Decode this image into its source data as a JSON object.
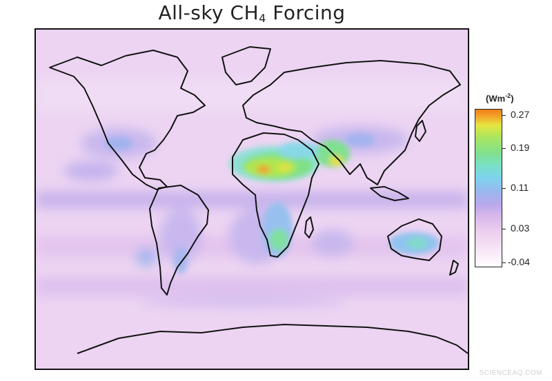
{
  "title": {
    "text": "All-sky CH",
    "subscript": "4",
    "suffix": " Forcing"
  },
  "colorbar": {
    "unit": "Wm",
    "unit_exp": "-2",
    "ticks": [
      "0.27",
      "0.19",
      "0.11",
      "0.03",
      "-0.04"
    ],
    "range": [
      -0.04,
      0.27
    ],
    "colors": [
      "#ffffff",
      "#eccfee",
      "#b8a8ec",
      "#7fd2ee",
      "#80e090",
      "#e6e640",
      "#f08018"
    ]
  },
  "watermark": "SCIENCEAQ.COM"
}
